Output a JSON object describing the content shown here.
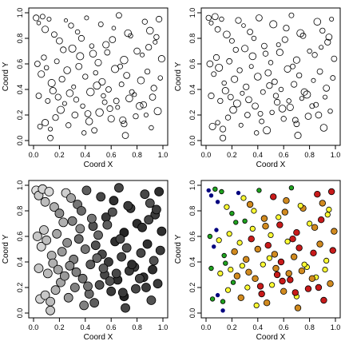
{
  "chart_data": [
    {
      "type": "scatter",
      "title": "",
      "xlabel": "Coord X",
      "ylabel": "Coord Y",
      "xlim": [
        0,
        1
      ],
      "ylim": [
        0,
        1
      ],
      "xticks": [
        "0.0",
        "0.2",
        "0.4",
        "0.6",
        "0.8",
        "1.0"
      ],
      "yticks": [
        "0.0",
        "0.2",
        "0.4",
        "0.6",
        "0.8",
        "1.0"
      ],
      "grid": false,
      "marker": "open circle",
      "point_colors": "none",
      "x": [
        0.02,
        0.04,
        0.07,
        0.09,
        0.12,
        0.16,
        0.2,
        0.25,
        0.29,
        0.3,
        0.34,
        0.37,
        0.41,
        0.46,
        0.52,
        0.56,
        0.62,
        0.66,
        0.7,
        0.75,
        0.8,
        0.86,
        0.9,
        0.94,
        0.97,
        0.03,
        0.06,
        0.1,
        0.14,
        0.18,
        0.22,
        0.26,
        0.31,
        0.35,
        0.4,
        0.44,
        0.48,
        0.53,
        0.58,
        0.63,
        0.68,
        0.72,
        0.78,
        0.83,
        0.88,
        0.93,
        0.98,
        0.05,
        0.09,
        0.13,
        0.17,
        0.21,
        0.27,
        0.32,
        0.38,
        0.43,
        0.47,
        0.51,
        0.55,
        0.6,
        0.65,
        0.7,
        0.74,
        0.79,
        0.85,
        0.91,
        0.96,
        0.04,
        0.11,
        0.15,
        0.19,
        0.24,
        0.28,
        0.33,
        0.42,
        0.49,
        0.54,
        0.59,
        0.64,
        0.69,
        0.76,
        0.82,
        0.87,
        0.92,
        0.08,
        0.23,
        0.36,
        0.45,
        0.5,
        0.57,
        0.61,
        0.67,
        0.73,
        0.84,
        0.89,
        0.95,
        0.99,
        0.13,
        0.39,
        0.71
      ],
      "y": [
        0.96,
        0.92,
        0.97,
        0.87,
        0.95,
        0.83,
        0.78,
        0.94,
        0.9,
        0.72,
        0.85,
        0.8,
        0.96,
        0.68,
        0.91,
        0.75,
        0.88,
        0.98,
        0.63,
        0.82,
        0.7,
        0.93,
        0.86,
        0.77,
        0.95,
        0.6,
        0.52,
        0.57,
        0.45,
        0.62,
        0.48,
        0.55,
        0.42,
        0.58,
        0.5,
        0.38,
        0.53,
        0.46,
        0.4,
        0.56,
        0.44,
        0.51,
        0.36,
        0.47,
        0.54,
        0.41,
        0.49,
        0.11,
        0.14,
        0.09,
        0.18,
        0.24,
        0.12,
        0.2,
        0.27,
        0.15,
        0.08,
        0.22,
        0.3,
        0.17,
        0.26,
        0.13,
        0.33,
        0.19,
        0.28,
        0.1,
        0.23,
        0.35,
        0.31,
        0.39,
        0.34,
        0.29,
        0.37,
        0.32,
        0.21,
        0.43,
        0.35,
        0.25,
        0.31,
        0.16,
        0.38,
        0.27,
        0.2,
        0.34,
        0.65,
        0.71,
        0.66,
        0.74,
        0.61,
        0.69,
        0.79,
        0.58,
        0.84,
        0.67,
        0.73,
        0.81,
        0.64,
        0.02,
        0.06,
        0.04
      ],
      "sizes": [
        1.0,
        0.4,
        0.7,
        1.2,
        0.5,
        0.9,
        1.1,
        0.3,
        0.8,
        1.4,
        0.6,
        1.0,
        0.5,
        1.3,
        0.7,
        1.2,
        0.4,
        0.9,
        1.5,
        0.6,
        1.1,
        0.8,
        1.3,
        0.5,
        1.0,
        0.9,
        1.2,
        0.6,
        1.4,
        0.7,
        1.0,
        1.3,
        0.5,
        1.1,
        0.8,
        1.5,
        0.6,
        1.2,
        0.9,
        1.4,
        0.7,
        1.1,
        0.5,
        1.3,
        0.8,
        1.0,
        0.6,
        0.7,
        1.2,
        0.5,
        1.0,
        1.4,
        0.8,
        1.1,
        0.6,
        1.3,
        0.9,
        1.5,
        0.7,
        1.2,
        0.5,
        1.0,
        1.3,
        0.8,
        1.1,
        0.6,
        1.4,
        0.9,
        0.7,
        1.2,
        1.0,
        0.5,
        1.3,
        0.8,
        1.1,
        1.4,
        0.6,
        1.0,
        0.9,
        1.2,
        0.7,
        1.3,
        0.5,
        1.1,
        0.8,
        1.0,
        1.4,
        0.6,
        1.2,
        0.9,
        1.1,
        0.7,
        1.3,
        0.5,
        1.0,
        0.8,
        1.2,
        0.9,
        0.6,
        1.1
      ]
    },
    {
      "type": "scatter",
      "title": "",
      "xlabel": "Coord X",
      "ylabel": "Coord Y",
      "xlim": [
        0,
        1
      ],
      "ylim": [
        0,
        1
      ],
      "xticks": [
        "0.0",
        "0.2",
        "0.4",
        "0.6",
        "0.8",
        "1.0"
      ],
      "yticks": [
        "0.0",
        "0.2",
        "0.4",
        "0.6",
        "0.8",
        "1.0"
      ],
      "grid": false,
      "marker": "open circle",
      "point_colors": "none",
      "x": [
        0.02,
        0.04,
        0.07,
        0.09,
        0.12,
        0.16,
        0.2,
        0.25,
        0.29,
        0.3,
        0.34,
        0.37,
        0.41,
        0.46,
        0.52,
        0.56,
        0.62,
        0.66,
        0.7,
        0.75,
        0.8,
        0.86,
        0.9,
        0.94,
        0.97,
        0.03,
        0.06,
        0.1,
        0.14,
        0.18,
        0.22,
        0.26,
        0.31,
        0.35,
        0.4,
        0.44,
        0.48,
        0.53,
        0.58,
        0.63,
        0.68,
        0.72,
        0.78,
        0.83,
        0.88,
        0.93,
        0.98,
        0.05,
        0.09,
        0.13,
        0.17,
        0.21,
        0.27,
        0.32,
        0.38,
        0.43,
        0.47,
        0.51,
        0.55,
        0.6,
        0.65,
        0.7,
        0.74,
        0.79,
        0.85,
        0.91,
        0.96,
        0.04,
        0.11,
        0.15,
        0.19,
        0.24,
        0.28,
        0.33,
        0.42,
        0.49,
        0.54,
        0.59,
        0.64,
        0.69,
        0.76,
        0.82,
        0.87,
        0.92,
        0.08,
        0.23,
        0.36,
        0.45,
        0.5,
        0.57,
        0.61,
        0.67,
        0.73,
        0.84,
        0.89,
        0.95,
        0.99,
        0.13,
        0.39,
        0.71
      ],
      "y": [
        0.96,
        0.92,
        0.97,
        0.87,
        0.95,
        0.83,
        0.78,
        0.94,
        0.9,
        0.72,
        0.85,
        0.8,
        0.96,
        0.68,
        0.91,
        0.75,
        0.88,
        0.98,
        0.63,
        0.82,
        0.7,
        0.93,
        0.86,
        0.77,
        0.95,
        0.6,
        0.52,
        0.57,
        0.45,
        0.62,
        0.48,
        0.55,
        0.42,
        0.58,
        0.5,
        0.38,
        0.53,
        0.46,
        0.4,
        0.56,
        0.44,
        0.51,
        0.36,
        0.47,
        0.54,
        0.41,
        0.49,
        0.11,
        0.14,
        0.09,
        0.18,
        0.24,
        0.12,
        0.2,
        0.27,
        0.15,
        0.08,
        0.22,
        0.3,
        0.17,
        0.26,
        0.13,
        0.33,
        0.19,
        0.28,
        0.1,
        0.23,
        0.35,
        0.31,
        0.39,
        0.34,
        0.29,
        0.37,
        0.32,
        0.21,
        0.43,
        0.35,
        0.25,
        0.31,
        0.16,
        0.38,
        0.27,
        0.2,
        0.34,
        0.65,
        0.71,
        0.66,
        0.74,
        0.61,
        0.69,
        0.79,
        0.58,
        0.84,
        0.67,
        0.73,
        0.81,
        0.64,
        0.02,
        0.06,
        0.04
      ],
      "sizes": [
        0.8,
        0.5,
        1.1,
        0.9,
        0.6,
        1.3,
        0.7,
        1.0,
        0.4,
        1.2,
        0.9,
        0.6,
        1.1,
        0.8,
        1.4,
        0.5,
        1.0,
        0.7,
        1.2,
        0.9,
        0.6,
        1.3,
        0.8,
        1.0,
        0.5,
        1.1,
        0.7,
        1.4,
        0.6,
        0.9,
        1.2,
        0.8,
        1.0,
        0.5,
        1.3,
        0.7,
        1.1,
        0.9,
        0.6,
        1.2,
        1.0,
        0.8,
        1.4,
        0.5,
        0.9,
        1.1,
        0.7,
        1.2,
        0.6,
        1.0,
        0.8,
        1.3,
        0.5,
        0.9,
        1.1,
        0.7,
        1.4,
        0.6,
        1.0,
        0.8,
        1.2,
        0.9,
        0.5,
        1.1,
        0.7,
        1.3,
        0.6,
        1.0,
        0.8,
        1.2,
        0.9,
        1.4,
        0.5,
        1.1,
        0.7,
        1.0,
        0.8,
        1.3,
        0.6,
        0.9,
        1.2,
        0.7,
        1.1,
        0.5,
        1.0,
        0.8,
        1.3,
        0.9,
        0.6,
        1.2,
        1.0,
        0.7,
        1.4,
        0.8,
        0.5,
        1.1,
        0.9,
        1.0,
        0.6,
        1.2
      ]
    },
    {
      "type": "scatter",
      "title": "",
      "xlabel": "Coord X",
      "ylabel": "Coord Y",
      "xlim": [
        0,
        1
      ],
      "ylim": [
        0,
        1
      ],
      "xticks": [
        "0.0",
        "0.2",
        "0.4",
        "0.6",
        "0.8",
        "1.0"
      ],
      "yticks": [
        "0.0",
        "0.2",
        "0.4",
        "0.6",
        "0.8",
        "1.0"
      ],
      "grid": false,
      "marker": "filled circle",
      "point_colors": "grayscale",
      "x": [
        0.02,
        0.04,
        0.07,
        0.09,
        0.12,
        0.16,
        0.2,
        0.25,
        0.29,
        0.3,
        0.34,
        0.37,
        0.41,
        0.46,
        0.52,
        0.56,
        0.62,
        0.66,
        0.7,
        0.75,
        0.8,
        0.86,
        0.9,
        0.94,
        0.97,
        0.03,
        0.06,
        0.1,
        0.14,
        0.18,
        0.22,
        0.26,
        0.31,
        0.35,
        0.4,
        0.44,
        0.48,
        0.53,
        0.58,
        0.63,
        0.68,
        0.72,
        0.78,
        0.83,
        0.88,
        0.93,
        0.98,
        0.05,
        0.09,
        0.13,
        0.17,
        0.21,
        0.27,
        0.32,
        0.38,
        0.43,
        0.47,
        0.51,
        0.55,
        0.6,
        0.65,
        0.7,
        0.74,
        0.79,
        0.85,
        0.91,
        0.96,
        0.04,
        0.11,
        0.15,
        0.19,
        0.24,
        0.28,
        0.33,
        0.42,
        0.49,
        0.54,
        0.59,
        0.64,
        0.69,
        0.76,
        0.82,
        0.87,
        0.92,
        0.08,
        0.23,
        0.36,
        0.45,
        0.5,
        0.57,
        0.61,
        0.67,
        0.73,
        0.84,
        0.89,
        0.95,
        0.99,
        0.13,
        0.39,
        0.71
      ],
      "y": [
        0.96,
        0.92,
        0.97,
        0.87,
        0.95,
        0.83,
        0.78,
        0.94,
        0.9,
        0.72,
        0.85,
        0.8,
        0.96,
        0.68,
        0.91,
        0.75,
        0.88,
        0.98,
        0.63,
        0.82,
        0.7,
        0.93,
        0.86,
        0.77,
        0.95,
        0.6,
        0.52,
        0.57,
        0.45,
        0.62,
        0.48,
        0.55,
        0.42,
        0.58,
        0.5,
        0.38,
        0.53,
        0.46,
        0.4,
        0.56,
        0.44,
        0.51,
        0.36,
        0.47,
        0.54,
        0.41,
        0.49,
        0.11,
        0.14,
        0.09,
        0.18,
        0.24,
        0.12,
        0.2,
        0.27,
        0.15,
        0.08,
        0.22,
        0.3,
        0.17,
        0.26,
        0.13,
        0.33,
        0.19,
        0.28,
        0.1,
        0.23,
        0.35,
        0.31,
        0.39,
        0.34,
        0.29,
        0.37,
        0.32,
        0.21,
        0.43,
        0.35,
        0.25,
        0.31,
        0.16,
        0.38,
        0.27,
        0.2,
        0.34,
        0.65,
        0.71,
        0.66,
        0.74,
        0.61,
        0.69,
        0.79,
        0.58,
        0.84,
        0.67,
        0.73,
        0.81,
        0.64,
        0.02,
        0.06,
        0.04
      ],
      "levels": [
        0.95,
        0.85,
        0.9,
        0.8,
        0.92,
        0.75,
        0.6,
        0.88,
        0.7,
        0.55,
        0.5,
        0.45,
        0.4,
        0.35,
        0.3,
        0.25,
        0.2,
        0.3,
        0.15,
        0.25,
        0.2,
        0.3,
        0.35,
        0.25,
        0.2,
        0.85,
        0.9,
        0.8,
        0.75,
        0.7,
        0.65,
        0.6,
        0.55,
        0.45,
        0.5,
        0.4,
        0.35,
        0.3,
        0.25,
        0.2,
        0.3,
        0.35,
        0.25,
        0.3,
        0.2,
        0.35,
        0.25,
        0.9,
        0.85,
        0.8,
        0.75,
        0.7,
        0.65,
        0.55,
        0.5,
        0.45,
        0.4,
        0.35,
        0.3,
        0.25,
        0.2,
        0.15,
        0.25,
        0.3,
        0.2,
        0.35,
        0.25,
        0.85,
        0.8,
        0.75,
        0.7,
        0.65,
        0.6,
        0.55,
        0.5,
        0.45,
        0.4,
        0.35,
        0.3,
        0.25,
        0.2,
        0.3,
        0.25,
        0.2,
        0.85,
        0.75,
        0.6,
        0.5,
        0.45,
        0.4,
        0.35,
        0.3,
        0.25,
        0.2,
        0.3,
        0.25,
        0.2,
        0.85,
        0.55,
        0.3
      ]
    },
    {
      "type": "scatter",
      "title": "",
      "xlabel": "Coord X",
      "ylabel": "Coord Y",
      "xlim": [
        0,
        1
      ],
      "ylim": [
        0,
        1
      ],
      "xticks": [
        "0.0",
        "0.2",
        "0.4",
        "0.6",
        "0.8",
        "1.0"
      ],
      "yticks": [
        "0.0",
        "0.2",
        "0.4",
        "0.6",
        "0.8",
        "1.0"
      ],
      "grid": false,
      "marker": "filled circle",
      "point_colors": "categorical",
      "palette": [
        "#00007f",
        "#1fa31f",
        "#ffff33",
        "#d18a1f",
        "#c81a1a"
      ],
      "x": [
        0.02,
        0.04,
        0.07,
        0.09,
        0.12,
        0.16,
        0.2,
        0.25,
        0.29,
        0.3,
        0.34,
        0.37,
        0.41,
        0.46,
        0.52,
        0.56,
        0.62,
        0.66,
        0.7,
        0.75,
        0.8,
        0.86,
        0.9,
        0.94,
        0.97,
        0.03,
        0.06,
        0.1,
        0.14,
        0.18,
        0.22,
        0.26,
        0.31,
        0.35,
        0.4,
        0.44,
        0.48,
        0.53,
        0.58,
        0.63,
        0.68,
        0.72,
        0.78,
        0.83,
        0.88,
        0.93,
        0.98,
        0.05,
        0.09,
        0.13,
        0.17,
        0.21,
        0.27,
        0.32,
        0.38,
        0.43,
        0.47,
        0.51,
        0.55,
        0.6,
        0.65,
        0.7,
        0.74,
        0.79,
        0.85,
        0.91,
        0.96,
        0.04,
        0.11,
        0.15,
        0.19,
        0.24,
        0.28,
        0.33,
        0.42,
        0.49,
        0.54,
        0.59,
        0.64,
        0.69,
        0.76,
        0.82,
        0.87,
        0.92,
        0.08,
        0.23,
        0.36,
        0.45,
        0.5,
        0.57,
        0.61,
        0.67,
        0.73,
        0.84,
        0.89,
        0.95,
        0.99,
        0.13,
        0.39,
        0.71
      ],
      "y": [
        0.96,
        0.92,
        0.97,
        0.87,
        0.95,
        0.83,
        0.78,
        0.94,
        0.9,
        0.72,
        0.85,
        0.8,
        0.96,
        0.68,
        0.91,
        0.75,
        0.88,
        0.98,
        0.63,
        0.82,
        0.7,
        0.93,
        0.86,
        0.77,
        0.95,
        0.6,
        0.52,
        0.57,
        0.45,
        0.62,
        0.48,
        0.55,
        0.42,
        0.58,
        0.5,
        0.38,
        0.53,
        0.46,
        0.4,
        0.56,
        0.44,
        0.51,
        0.36,
        0.47,
        0.54,
        0.41,
        0.49,
        0.11,
        0.14,
        0.09,
        0.18,
        0.24,
        0.12,
        0.2,
        0.27,
        0.15,
        0.08,
        0.22,
        0.3,
        0.17,
        0.26,
        0.13,
        0.33,
        0.19,
        0.28,
        0.1,
        0.23,
        0.35,
        0.31,
        0.39,
        0.34,
        0.29,
        0.37,
        0.32,
        0.21,
        0.43,
        0.35,
        0.25,
        0.31,
        0.16,
        0.38,
        0.27,
        0.2,
        0.34,
        0.65,
        0.71,
        0.66,
        0.74,
        0.61,
        0.69,
        0.79,
        0.58,
        0.84,
        0.67,
        0.73,
        0.81,
        0.64,
        0.02,
        0.06,
        0.04
      ],
      "categories_index": [
        0,
        0,
        1,
        0,
        1,
        2,
        1,
        0,
        2,
        1,
        3,
        2,
        1,
        3,
        4,
        2,
        3,
        1,
        4,
        3,
        2,
        4,
        3,
        2,
        4,
        1,
        0,
        2,
        1,
        2,
        3,
        2,
        3,
        4,
        3,
        2,
        4,
        3,
        4,
        2,
        3,
        4,
        2,
        4,
        3,
        2,
        4,
        1,
        0,
        1,
        2,
        1,
        3,
        2,
        3,
        4,
        3,
        2,
        4,
        3,
        4,
        2,
        3,
        4,
        2,
        4,
        3,
        1,
        2,
        1,
        2,
        3,
        2,
        3,
        4,
        2,
        3,
        4,
        3,
        4,
        2,
        3,
        4,
        2,
        0,
        1,
        2,
        3,
        2,
        4,
        3,
        4,
        2,
        3,
        4,
        2,
        3,
        0,
        2,
        3
      ]
    }
  ]
}
